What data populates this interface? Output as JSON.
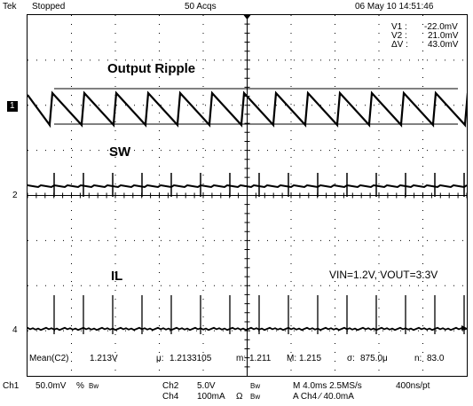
{
  "header": {
    "brand": "Tek",
    "run_state": "Stopped",
    "acquisitions": "50 Acqs",
    "datetime": "06 May 10 14:51:46"
  },
  "cursors": {
    "v1_label": "V1 :",
    "v1_value": "-22.0mV",
    "v2_label": "V2 :",
    "v2_value": "21.0mV",
    "dv_label": "ΔV :",
    "dv_value": "43.0mV"
  },
  "annotations": {
    "output_ripple": "Output Ripple",
    "sw": "SW",
    "il": "IL",
    "conditions": "VIN=1.2V, VOUT=3.3V"
  },
  "channel_markers": {
    "ch1": "1",
    "ch2": "2",
    "ch4": "4"
  },
  "measurements": {
    "label": "Mean(C2)",
    "value": "1.213V",
    "mu_label": "μ:",
    "mu_value": "1.2133105",
    "m_label": "m:",
    "m_value": "1.211",
    "M_label": "M:",
    "M_value": "1.215",
    "sigma_label": "σ:",
    "sigma_value": "875.0μ",
    "n_label": "n:",
    "n_value": "83.0"
  },
  "footer": {
    "ch1_name": "Ch1",
    "ch1_scale": "50.0mV",
    "ch1_coupling": "%",
    "ch1_bw": "Bw",
    "ch2_name": "Ch2",
    "ch2_scale": "5.0V",
    "ch2_bw": "Bw",
    "ch4_name": "Ch4",
    "ch4_scale": "100mA",
    "ch4_coupling": "Ω",
    "ch4_bw": "Bw",
    "timebase": "M 4.0ms 2.5MS/s",
    "sample_interval": "400ns/pt",
    "trigger": "A Ch4 ⁄ 40.0mA"
  },
  "colors": {
    "trace": "#000000",
    "background": "#ffffff",
    "grid": "#000000"
  }
}
